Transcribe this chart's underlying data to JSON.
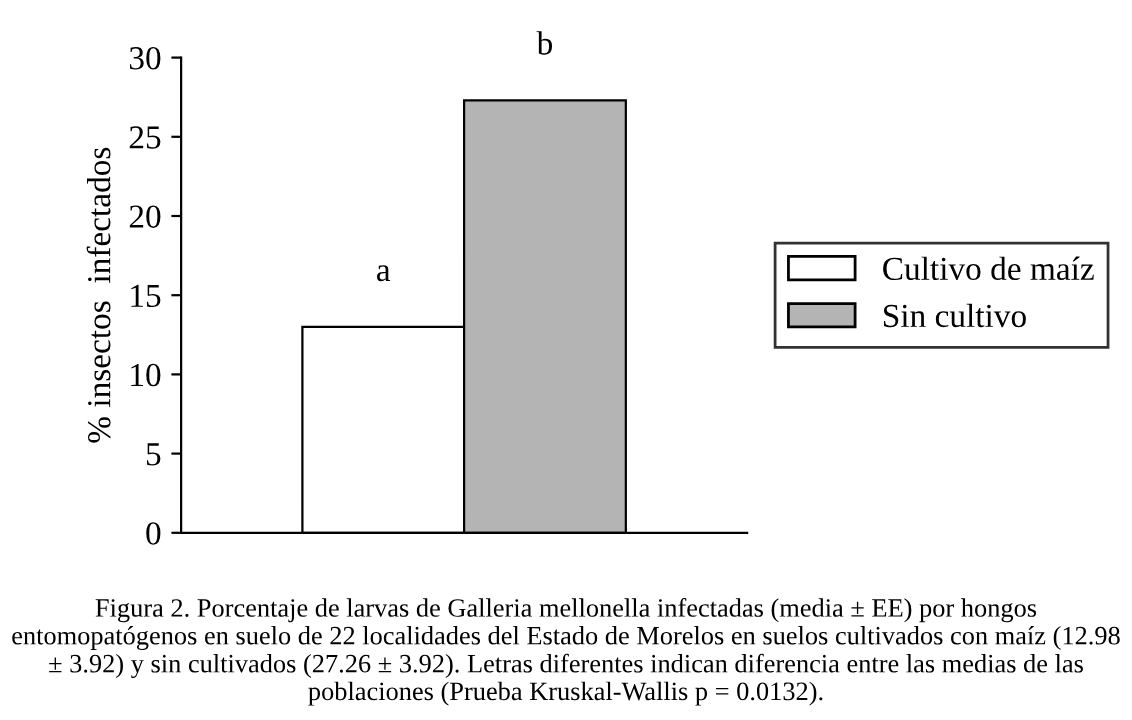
{
  "chart_data": {
    "type": "bar",
    "ylabel": "% insectos  infectados",
    "categories": [
      null
    ],
    "series": [
      {
        "name": "Cultivo de maíz",
        "color": "#ffffff",
        "values": [
          13
        ]
      },
      {
        "name": "Sin cultivo",
        "color": "#b4b4b4",
        "values": [
          27.3
        ]
      }
    ],
    "ylim": [
      0,
      30
    ],
    "yticks": [
      0,
      5,
      10,
      15,
      20,
      25,
      30
    ],
    "grid": false,
    "legend": "right",
    "annotations": [
      "a",
      "b",
      "Figura 2. Porcentaje de larvas de Galleria mellonella infectadas (media ± EE) por hongos entomopatógenos en suelo de 22 localidades del Estado de Morelos en suelos cultivados con maíz (12.98 ± 3.92) y sin cultivados (27.26 ± 3.92). Letras diferentes indican diferencia entre las medias de las poblaciones (Prueba Kruskal-Wallis p = 0.0132)."
    ]
  }
}
